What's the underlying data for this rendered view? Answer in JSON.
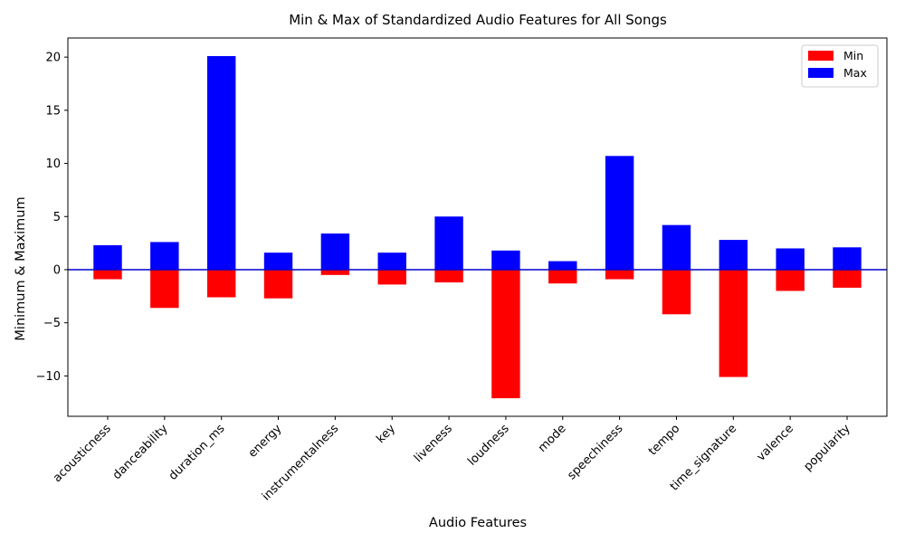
{
  "chart_data": {
    "type": "bar",
    "title": "Min & Max of Standardized Audio Features for All Songs",
    "xlabel": "Audio Features",
    "ylabel": "Minimum & Maximum",
    "ylim": [
      -13.8,
      21.8
    ],
    "yticks": [
      -10,
      -5,
      0,
      5,
      10,
      15,
      20
    ],
    "ytick_labels": [
      "−10",
      "−5",
      "0",
      "5",
      "10",
      "15",
      "20"
    ],
    "categories": [
      "acousticness",
      "danceability",
      "duration_ms",
      "energy",
      "instrumentalness",
      "key",
      "liveness",
      "loudness",
      "mode",
      "speechiness",
      "tempo",
      "time_signature",
      "valence",
      "popularity"
    ],
    "series": [
      {
        "name": "Min",
        "color": "#ff0000",
        "values": [
          -0.9,
          -3.6,
          -2.6,
          -2.7,
          -0.5,
          -1.4,
          -1.2,
          -12.1,
          -1.3,
          -0.9,
          -4.2,
          -10.1,
          -2.0,
          -1.7
        ]
      },
      {
        "name": "Max",
        "color": "#0000ff",
        "values": [
          2.3,
          2.6,
          20.1,
          1.6,
          3.4,
          1.6,
          5.0,
          1.8,
          0.8,
          10.7,
          4.2,
          2.8,
          2.0,
          2.1
        ]
      }
    ],
    "zero_line_color": "#0000cc",
    "legend_position": "top-right",
    "grid": false
  }
}
